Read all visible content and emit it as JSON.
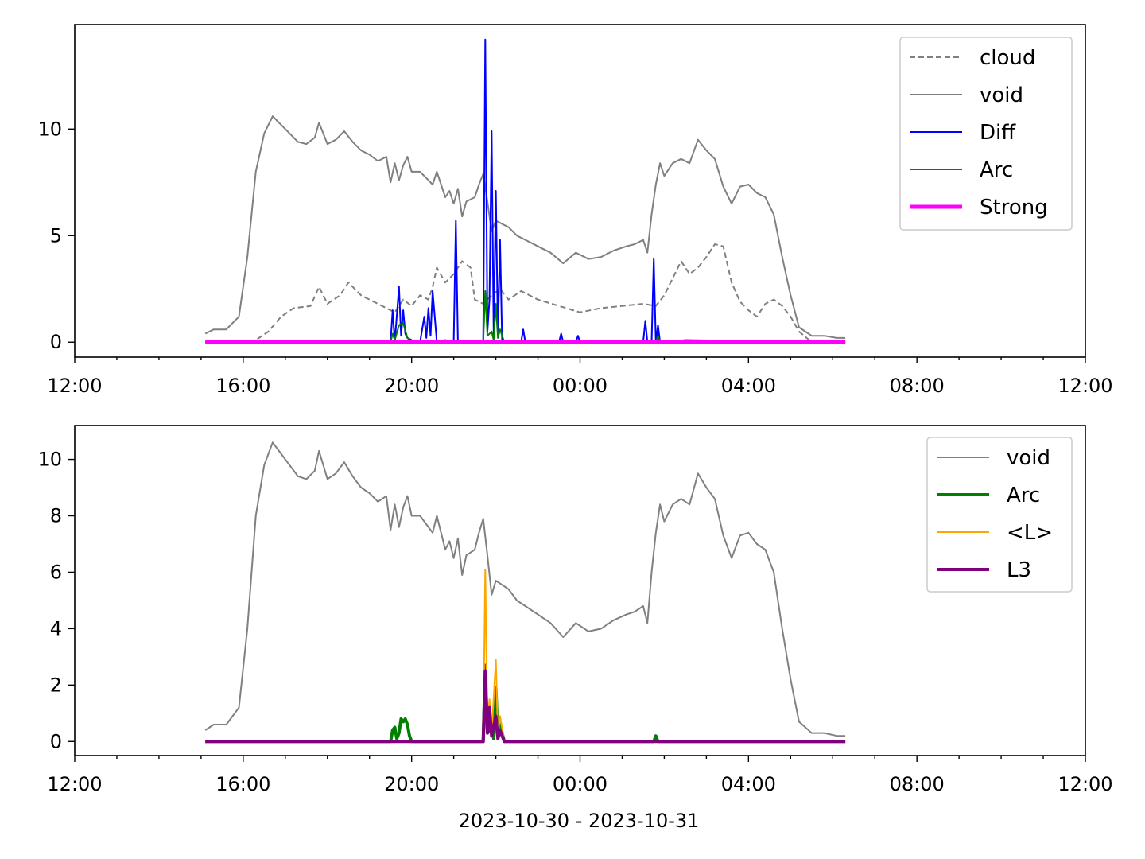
{
  "chart_data": [
    {
      "type": "line",
      "title": "",
      "xlabel": "",
      "ylabel": "",
      "x_tick_labels": [
        "12:00",
        "16:00",
        "20:00",
        "00:00",
        "04:00",
        "08:00",
        "12:00"
      ],
      "y_tick_labels": [
        "0",
        "5",
        "10"
      ],
      "y_ticks": [
        0,
        5,
        10
      ],
      "xlim_hours": [
        12,
        36
      ],
      "ylim": [
        -0.7,
        14.9
      ],
      "legend_position": "upper-right",
      "legend_entries": [
        "cloud",
        "void",
        "Diff",
        "Arc",
        "Strong"
      ],
      "series": [
        {
          "name": "cloud",
          "color": "#808080",
          "style": "dashed",
          "width": 2,
          "x_hours": [
            15.1,
            15.5,
            16.0,
            16.3,
            16.6,
            16.9,
            17.2,
            17.6,
            17.8,
            18.0,
            18.3,
            18.5,
            18.8,
            19.1,
            19.4,
            19.6,
            19.8,
            20.0,
            20.2,
            20.4,
            20.5,
            20.6,
            20.8,
            21.0,
            21.2,
            21.4,
            21.5,
            21.7,
            21.9,
            22.1,
            22.3,
            22.6,
            23.0,
            23.5,
            24.0,
            24.5,
            25.0,
            25.5,
            25.8,
            26.0,
            26.2,
            26.4,
            26.6,
            26.8,
            27.0,
            27.2,
            27.4,
            27.6,
            27.8,
            28.0,
            28.2,
            28.4,
            28.6,
            28.8,
            29.0,
            29.2,
            29.5,
            30.0,
            30.3
          ],
          "y": [
            0.0,
            0.0,
            0.0,
            0.1,
            0.5,
            1.2,
            1.6,
            1.7,
            2.6,
            1.8,
            2.2,
            2.8,
            2.2,
            1.9,
            1.6,
            1.4,
            2.0,
            1.7,
            2.2,
            2.0,
            2.6,
            3.5,
            2.8,
            3.2,
            3.8,
            3.5,
            2.0,
            1.8,
            2.2,
            2.5,
            2.0,
            2.4,
            2.0,
            1.7,
            1.4,
            1.6,
            1.7,
            1.8,
            1.7,
            2.2,
            3.0,
            3.8,
            3.2,
            3.5,
            4.0,
            4.6,
            4.5,
            2.8,
            1.9,
            1.5,
            1.2,
            1.8,
            2.0,
            1.7,
            1.2,
            0.5,
            0.0,
            0.0,
            0.1
          ]
        },
        {
          "name": "void",
          "color": "#808080",
          "style": "solid",
          "width": 2,
          "x_hours": [
            15.1,
            15.3,
            15.6,
            15.9,
            16.1,
            16.3,
            16.5,
            16.7,
            16.9,
            17.1,
            17.3,
            17.5,
            17.7,
            17.8,
            18.0,
            18.2,
            18.4,
            18.6,
            18.8,
            19.0,
            19.2,
            19.4,
            19.5,
            19.6,
            19.7,
            19.8,
            19.9,
            20.0,
            20.2,
            20.4,
            20.5,
            20.6,
            20.7,
            20.8,
            20.9,
            21.0,
            21.1,
            21.2,
            21.3,
            21.5,
            21.6,
            21.7,
            21.8,
            21.9,
            22.0,
            22.1,
            22.3,
            22.5,
            22.7,
            23.0,
            23.3,
            23.6,
            23.9,
            24.2,
            24.5,
            24.8,
            25.1,
            25.3,
            25.5,
            25.6,
            25.7,
            25.8,
            25.9,
            26.0,
            26.2,
            26.4,
            26.6,
            26.8,
            27.0,
            27.2,
            27.4,
            27.6,
            27.8,
            28.0,
            28.2,
            28.4,
            28.6,
            28.8,
            29.0,
            29.2,
            29.5,
            29.8,
            30.1,
            30.3
          ],
          "y": [
            0.4,
            0.6,
            0.6,
            1.2,
            4.0,
            8.0,
            9.8,
            10.6,
            10.2,
            9.8,
            9.4,
            9.3,
            9.6,
            10.3,
            9.3,
            9.5,
            9.9,
            9.4,
            9.0,
            8.8,
            8.5,
            8.7,
            7.5,
            8.4,
            7.6,
            8.3,
            8.7,
            8.0,
            8.0,
            7.6,
            7.4,
            8.0,
            7.4,
            6.8,
            7.1,
            6.5,
            7.2,
            5.9,
            6.6,
            6.8,
            7.4,
            7.9,
            6.6,
            5.2,
            5.7,
            5.6,
            5.4,
            5.0,
            4.8,
            4.5,
            4.2,
            3.7,
            4.2,
            3.9,
            4.0,
            4.3,
            4.5,
            4.6,
            4.8,
            4.2,
            6.0,
            7.4,
            8.4,
            7.8,
            8.4,
            8.6,
            8.4,
            9.5,
            9.0,
            8.6,
            7.3,
            6.5,
            7.3,
            7.4,
            7.0,
            6.8,
            6.0,
            4.0,
            2.2,
            0.7,
            0.3,
            0.3,
            0.2,
            0.2
          ]
        },
        {
          "name": "Diff",
          "color": "#0000ff",
          "style": "solid",
          "width": 2,
          "x_hours": [
            15.1,
            19.5,
            19.55,
            19.6,
            19.7,
            19.75,
            19.8,
            19.85,
            19.9,
            20.0,
            20.1,
            20.2,
            20.3,
            20.35,
            20.4,
            20.45,
            20.5,
            20.6,
            20.8,
            21.0,
            21.05,
            21.1,
            21.2,
            21.7,
            21.75,
            21.8,
            21.85,
            21.9,
            21.95,
            22.0,
            22.05,
            22.1,
            22.15,
            22.2,
            22.25,
            22.3,
            22.6,
            22.65,
            22.7,
            23.0,
            23.5,
            23.55,
            23.6,
            23.9,
            23.95,
            24.0,
            25.5,
            25.55,
            25.6,
            25.7,
            25.75,
            25.8,
            25.85,
            25.9,
            26.0,
            26.5,
            30.3
          ],
          "y": [
            0.0,
            0.0,
            1.5,
            0.0,
            2.6,
            0.3,
            1.5,
            0.4,
            0.2,
            0.1,
            0.0,
            0.0,
            1.2,
            0.2,
            1.6,
            0.3,
            2.4,
            0.0,
            0.1,
            0.0,
            5.7,
            0.0,
            0.0,
            0.0,
            14.2,
            0.5,
            2.0,
            9.9,
            0.2,
            7.1,
            0.3,
            4.8,
            0.0,
            0.0,
            0.0,
            0.0,
            0.0,
            0.6,
            0.0,
            0.0,
            0.0,
            0.4,
            0.0,
            0.0,
            0.3,
            0.0,
            0.0,
            1.0,
            0.0,
            0.0,
            3.9,
            0.0,
            0.8,
            0.0,
            0.0,
            0.1,
            0.0
          ]
        },
        {
          "name": "Arc",
          "color": "#008000",
          "style": "solid",
          "width": 2,
          "x_hours": [
            15.1,
            19.5,
            19.55,
            19.6,
            19.7,
            19.8,
            19.9,
            20.0,
            21.7,
            21.75,
            21.8,
            21.9,
            21.95,
            22.0,
            22.05,
            22.1,
            22.2,
            25.8,
            25.85,
            25.9,
            30.3
          ],
          "y": [
            0.0,
            0.0,
            0.4,
            0.1,
            0.8,
            0.9,
            0.2,
            0.0,
            0.0,
            2.4,
            0.3,
            0.5,
            0.1,
            1.8,
            0.2,
            0.6,
            0.0,
            0.0,
            0.3,
            0.0,
            0.0
          ]
        },
        {
          "name": "Strong",
          "color": "#ff00ff",
          "style": "solid",
          "width": 5,
          "x_hours": [
            15.1,
            30.3
          ],
          "y": [
            0.0,
            0.0
          ]
        }
      ]
    },
    {
      "type": "line",
      "title": "",
      "xlabel": "2023-10-30 - 2023-10-31",
      "ylabel": "",
      "x_tick_labels": [
        "12:00",
        "16:00",
        "20:00",
        "00:00",
        "04:00",
        "08:00",
        "12:00"
      ],
      "y_tick_labels": [
        "0",
        "2",
        "4",
        "6",
        "8",
        "10"
      ],
      "y_ticks": [
        0,
        2,
        4,
        6,
        8,
        10
      ],
      "xlim_hours": [
        12,
        36
      ],
      "ylim": [
        -0.5,
        11.2
      ],
      "legend_position": "upper-right",
      "legend_entries": [
        "void",
        "Arc",
        "<L>",
        "L3"
      ],
      "series": [
        {
          "name": "void",
          "color": "#808080",
          "style": "solid",
          "width": 2,
          "x_hours": [
            15.1,
            15.3,
            15.6,
            15.9,
            16.1,
            16.3,
            16.5,
            16.7,
            16.9,
            17.1,
            17.3,
            17.5,
            17.7,
            17.8,
            18.0,
            18.2,
            18.4,
            18.6,
            18.8,
            19.0,
            19.2,
            19.4,
            19.5,
            19.6,
            19.7,
            19.8,
            19.9,
            20.0,
            20.2,
            20.4,
            20.5,
            20.6,
            20.7,
            20.8,
            20.9,
            21.0,
            21.1,
            21.2,
            21.3,
            21.5,
            21.6,
            21.7,
            21.8,
            21.9,
            22.0,
            22.1,
            22.3,
            22.5,
            22.7,
            23.0,
            23.3,
            23.6,
            23.9,
            24.2,
            24.5,
            24.8,
            25.1,
            25.3,
            25.5,
            25.6,
            25.7,
            25.8,
            25.9,
            26.0,
            26.2,
            26.4,
            26.6,
            26.8,
            27.0,
            27.2,
            27.4,
            27.6,
            27.8,
            28.0,
            28.2,
            28.4,
            28.6,
            28.8,
            29.0,
            29.2,
            29.5,
            29.8,
            30.1,
            30.3
          ],
          "y": [
            0.4,
            0.6,
            0.6,
            1.2,
            4.0,
            8.0,
            9.8,
            10.6,
            10.2,
            9.8,
            9.4,
            9.3,
            9.6,
            10.3,
            9.3,
            9.5,
            9.9,
            9.4,
            9.0,
            8.8,
            8.5,
            8.7,
            7.5,
            8.4,
            7.6,
            8.3,
            8.7,
            8.0,
            8.0,
            7.6,
            7.4,
            8.0,
            7.4,
            6.8,
            7.1,
            6.5,
            7.2,
            5.9,
            6.6,
            6.8,
            7.4,
            7.9,
            6.6,
            5.2,
            5.7,
            5.6,
            5.4,
            5.0,
            4.8,
            4.5,
            4.2,
            3.7,
            4.2,
            3.9,
            4.0,
            4.3,
            4.5,
            4.6,
            4.8,
            4.2,
            6.0,
            7.4,
            8.4,
            7.8,
            8.4,
            8.6,
            8.4,
            9.5,
            9.0,
            8.6,
            7.3,
            6.5,
            7.3,
            7.4,
            7.0,
            6.8,
            6.0,
            4.0,
            2.2,
            0.7,
            0.3,
            0.3,
            0.2,
            0.2
          ]
        },
        {
          "name": "Arc",
          "color": "#008000",
          "style": "solid",
          "width": 4,
          "x_hours": [
            15.1,
            19.5,
            19.55,
            19.6,
            19.65,
            19.7,
            19.75,
            19.8,
            19.85,
            19.9,
            19.95,
            20.0,
            21.7,
            21.75,
            21.8,
            21.9,
            21.95,
            22.0,
            22.05,
            22.1,
            22.2,
            25.75,
            25.8,
            25.85,
            30.3
          ],
          "y": [
            0.0,
            0.0,
            0.4,
            0.5,
            0.1,
            0.3,
            0.8,
            0.7,
            0.8,
            0.6,
            0.2,
            0.0,
            0.0,
            2.7,
            0.3,
            0.5,
            0.1,
            1.9,
            0.2,
            0.6,
            0.0,
            0.0,
            0.2,
            0.0,
            0.0
          ]
        },
        {
          "name": "<L>",
          "color": "#ffa500",
          "style": "solid",
          "width": 2,
          "x_hours": [
            15.1,
            21.7,
            21.75,
            21.8,
            21.85,
            21.9,
            22.0,
            22.05,
            22.1,
            22.2,
            30.3
          ],
          "y": [
            0.0,
            0.0,
            6.1,
            0.5,
            1.5,
            0.3,
            2.9,
            0.2,
            0.9,
            0.0,
            0.0
          ]
        },
        {
          "name": "L3",
          "color": "#800080",
          "style": "solid",
          "width": 4,
          "x_hours": [
            15.1,
            21.7,
            21.75,
            21.8,
            21.85,
            21.9,
            22.0,
            22.05,
            22.1,
            22.2,
            30.3
          ],
          "y": [
            0.0,
            0.0,
            2.5,
            0.3,
            1.2,
            0.2,
            0.9,
            0.1,
            0.4,
            0.0,
            0.0
          ]
        }
      ]
    }
  ]
}
